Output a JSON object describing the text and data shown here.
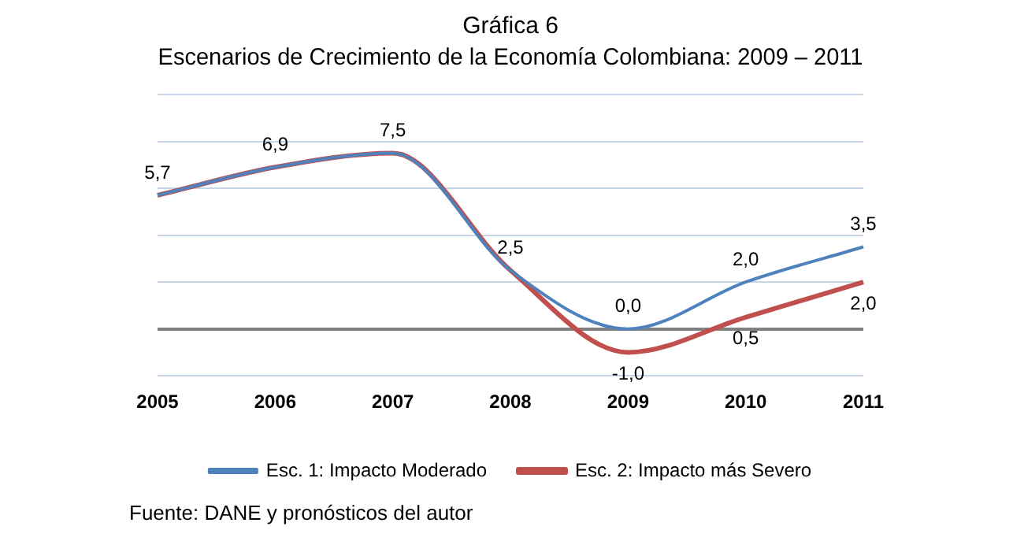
{
  "chart_data": {
    "type": "line",
    "title": "Gráfica 6",
    "subtitle": "Escenarios de Crecimiento de la Economía Colombiana: 2009 – 2011",
    "categories": [
      "2005",
      "2006",
      "2007",
      "2008",
      "2009",
      "2010",
      "2011"
    ],
    "series": [
      {
        "name": "Esc. 1: Impacto Moderado",
        "color": "#4f81bd",
        "values": [
          5.7,
          6.9,
          7.5,
          2.5,
          0.0,
          2.0,
          3.5
        ],
        "value_labels": [
          "5,7",
          "6,9",
          "7,5",
          "2,5",
          "0,0",
          "2,0",
          "3,5"
        ]
      },
      {
        "name": "Esc. 2: Impacto más Severo",
        "color": "#c0504d",
        "values": [
          5.7,
          6.9,
          7.5,
          2.5,
          -1.0,
          0.5,
          2.0
        ],
        "value_labels": [
          null,
          null,
          null,
          null,
          "-1,0",
          "0,5",
          "2,0"
        ]
      }
    ],
    "tick_labels": "x",
    "grid": "y",
    "legend": "bottom",
    "marker": "none",
    "line_style": "solid",
    "annotations": [
      "Fuente: DANE y pronósticos del autor"
    ]
  }
}
